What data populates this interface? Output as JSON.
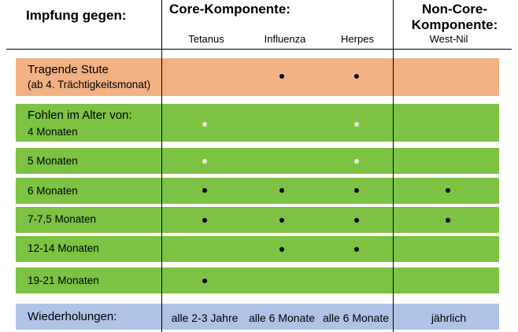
{
  "header": {
    "title": "Impfung gegen:",
    "core_title": "Core-Komponente:",
    "noncore_title": "Non-Core-\nKomponente:",
    "columns": [
      "Tetanus",
      "Influenza",
      "Herpes",
      "West-Nil"
    ]
  },
  "rows": [
    {
      "label": "Tragende Stute",
      "sublabel": "(ab 4. Trächtigkeitsmonat)",
      "marks": [
        "",
        "dot",
        "dot",
        ""
      ]
    },
    {
      "label": "Fohlen im Alter von:",
      "sublabel": "4 Monaten",
      "marks": [
        "faint",
        "",
        "faint",
        ""
      ]
    },
    {
      "label": "5 Monaten",
      "marks": [
        "faint",
        "",
        "faint",
        ""
      ]
    },
    {
      "label": "6 Monaten",
      "marks": [
        "dot",
        "dot",
        "dot",
        "dot"
      ]
    },
    {
      "label": "7-7,5 Monaten",
      "marks": [
        "dot",
        "dot",
        "dot",
        "dot"
      ]
    },
    {
      "label": "12-14 Monaten",
      "marks": [
        "",
        "dot",
        "dot",
        ""
      ]
    },
    {
      "label": "19-21 Monaten",
      "marks": [
        "dot",
        "",
        "",
        ""
      ]
    }
  ],
  "repetitions": {
    "label": "Wiederholungen:",
    "values": [
      "alle 2-3 Jahre",
      "alle 6 Monate",
      "alle 6 Monate",
      "jährlich"
    ]
  },
  "colors": {
    "mare_row": "#F2B183",
    "foal_rows": "#7DC242",
    "repeat_row": "#AFC3E6"
  }
}
